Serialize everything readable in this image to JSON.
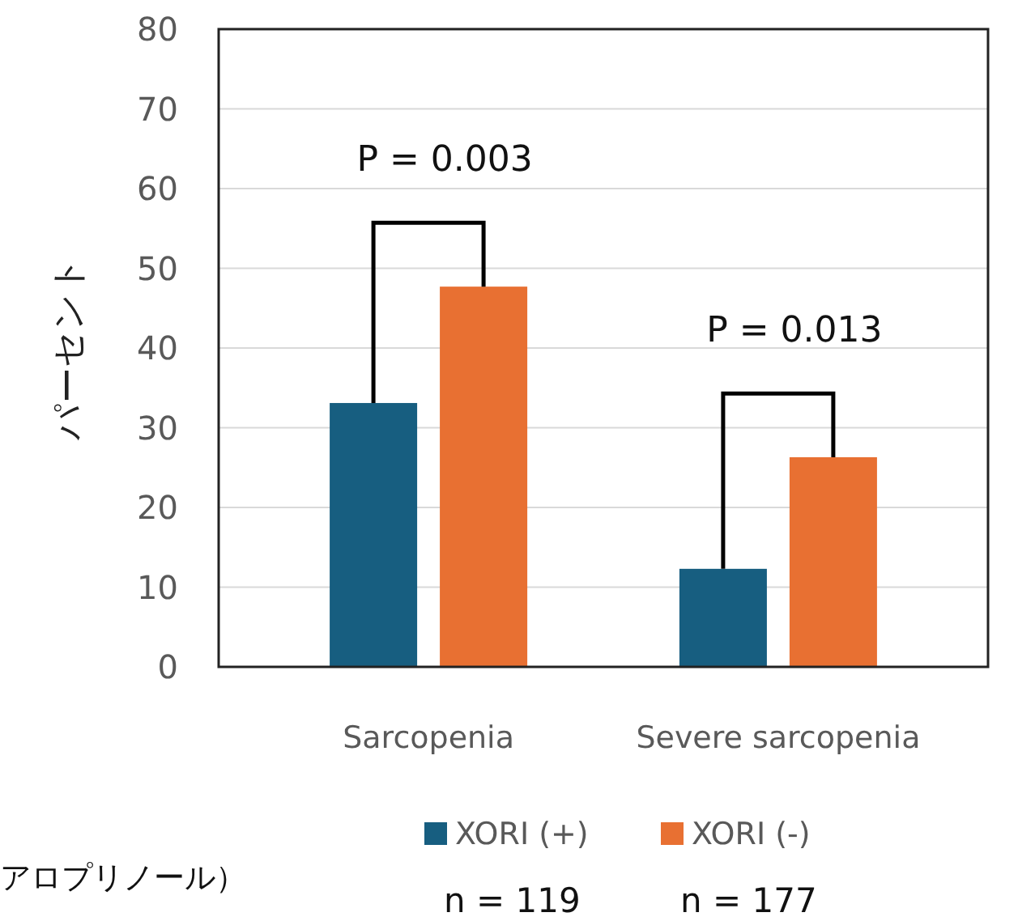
{
  "chart_data": {
    "type": "bar",
    "ylabel": "パーセント",
    "categories": [
      "Sarcopenia",
      "Severe sarcopenia"
    ],
    "series": [
      {
        "name": "XORI (+)",
        "color": "#175e80",
        "values": [
          33.1,
          12.3
        ]
      },
      {
        "name": "XORI (-)",
        "color": "#e87032",
        "values": [
          47.7,
          26.3
        ]
      }
    ],
    "ylim": [
      0,
      80
    ],
    "yticks": [
      0,
      10,
      20,
      30,
      40,
      50,
      60,
      70,
      80
    ],
    "grid": "y",
    "legend": "bottom",
    "annotations": [
      "P = 0.003",
      "P = 0.013",
      "n = 119",
      "n = 177",
      "アロプリノール）"
    ]
  }
}
